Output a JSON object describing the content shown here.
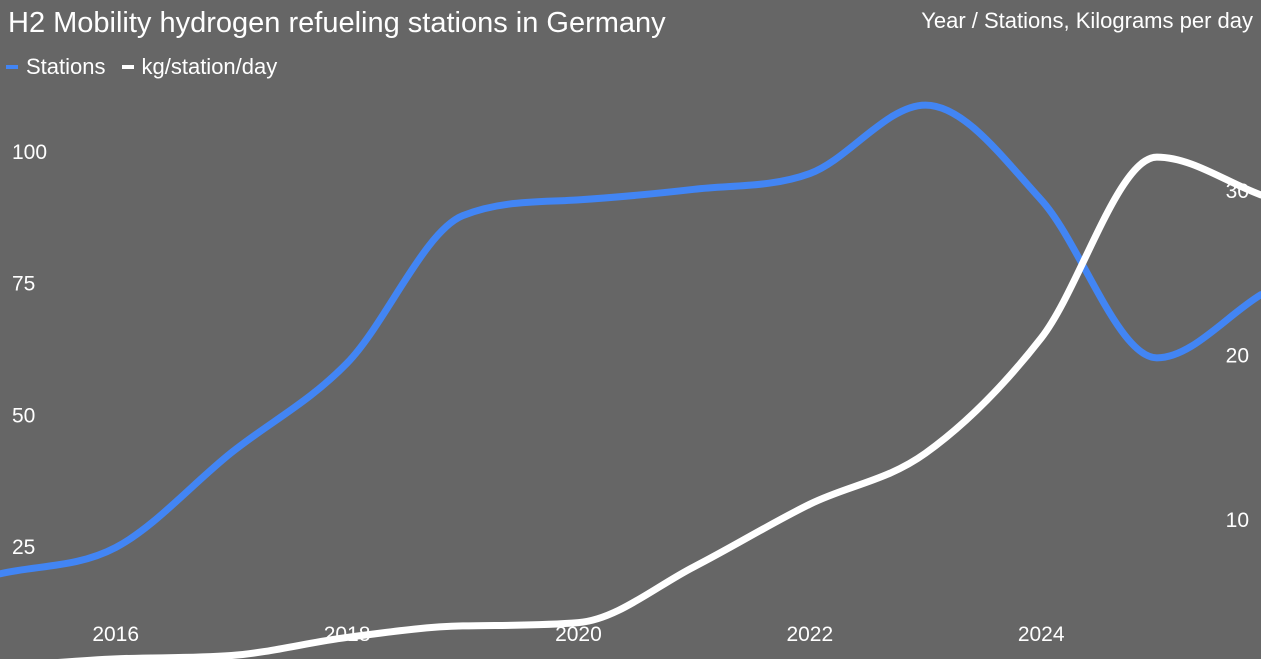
{
  "chart_data": {
    "type": "line",
    "title": "H2 Mobility hydrogen refueling stations in Germany",
    "axis_title": "Year / Stations, Kilograms per day",
    "x_ticks": [
      "2016",
      "2018",
      "2020",
      "2022",
      "2024"
    ],
    "x_range": [
      2015,
      2025.9
    ],
    "y_left": {
      "range": [
        18,
        118
      ],
      "ticks": [
        25,
        50,
        75,
        100
      ]
    },
    "y_right": {
      "range": [
        1,
        37
      ],
      "ticks": [
        10,
        20,
        30
      ]
    },
    "series": [
      {
        "name": "Stations",
        "axis": "left",
        "color": "#4285f4",
        "x": [
          2015,
          2016,
          2017,
          2018,
          2019,
          2020,
          2021,
          2022,
          2023,
          2024,
          2025,
          2025.9
        ],
        "values": [
          22,
          27,
          45,
          62,
          90,
          93,
          95,
          98,
          111,
          93,
          63,
          75
        ]
      },
      {
        "name": "kg/station/day",
        "axis": "right",
        "color": "#ffffff",
        "x": [
          2015,
          2016,
          2017,
          2018,
          2019,
          2020,
          2021,
          2022,
          2023,
          2024,
          2025,
          2025.9
        ],
        "values": [
          1,
          1.5,
          1.7,
          2.8,
          3.5,
          3.7,
          7.1,
          10.9,
          14,
          21,
          32,
          29.7
        ]
      }
    ],
    "legend": "top-left",
    "grid": false
  }
}
